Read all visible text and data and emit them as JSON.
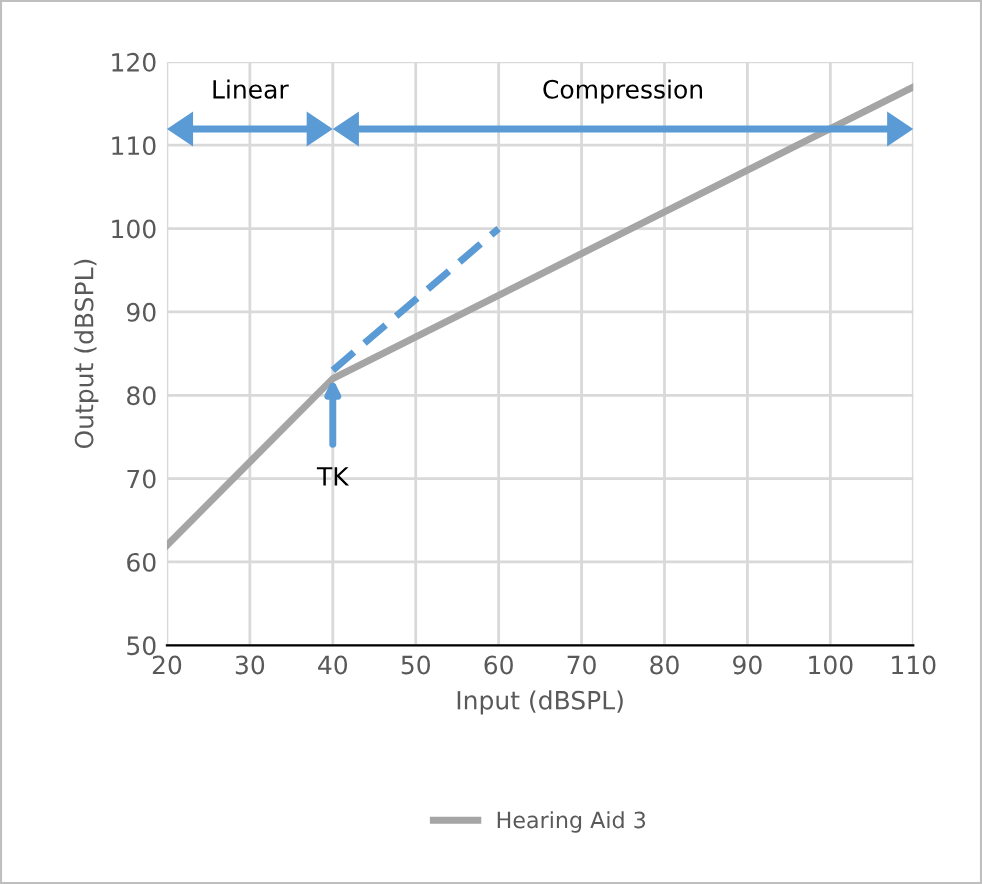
{
  "chart_data": {
    "type": "line",
    "xlabel": "Input (dBSPL)",
    "ylabel": "Output (dBSPL)",
    "series": [
      {
        "name": "Hearing Aid 3",
        "color": "#a5a5a5",
        "x": [
          20,
          40,
          110
        ],
        "values": [
          62,
          82,
          117
        ]
      },
      {
        "color": "#5b9bd5",
        "x": [
          40,
          60
        ],
        "values": [
          83,
          100
        ],
        "line_style": "dashed"
      }
    ],
    "xlim": [
      20,
      110
    ],
    "xticks": [
      20,
      30,
      40,
      50,
      60,
      70,
      80,
      90,
      100,
      110
    ],
    "ylim": [
      50,
      120
    ],
    "yticks": [
      50,
      60,
      70,
      80,
      90,
      100,
      110,
      120
    ],
    "grid": true,
    "legend": "bottom",
    "annotations": [
      "Linear",
      "Compression",
      {
        "text": "TK",
        "x": 40,
        "y": 82
      }
    ]
  }
}
